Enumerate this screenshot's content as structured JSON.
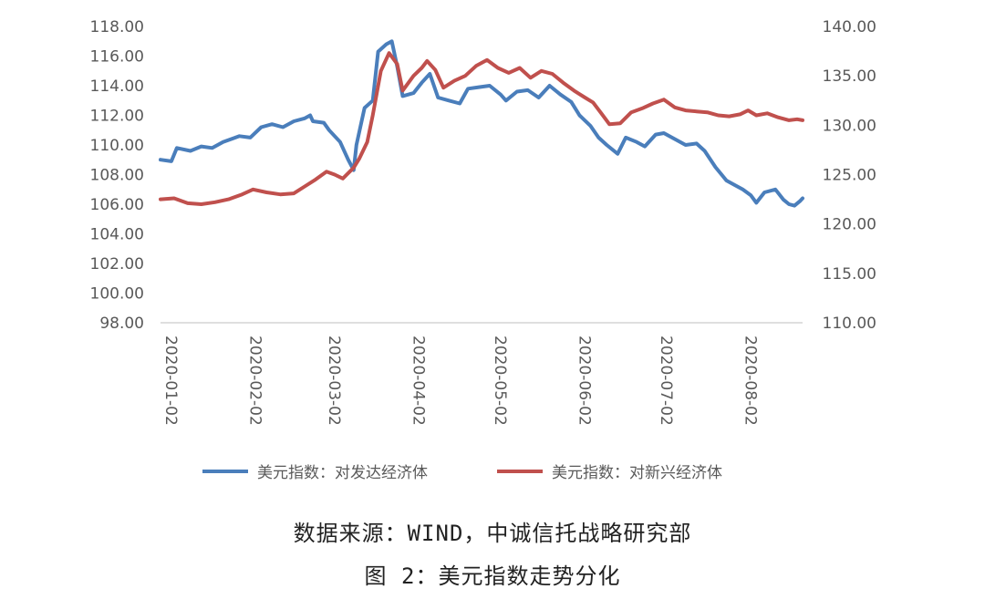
{
  "chart_data": {
    "type": "line",
    "y_left": {
      "ticks": [
        "118.00",
        "116.00",
        "114.00",
        "112.00",
        "110.00",
        "108.00",
        "106.00",
        "104.00",
        "102.00",
        "100.00",
        "98.00"
      ],
      "ylim": [
        98,
        118
      ]
    },
    "y_right": {
      "ticks": [
        "140.00",
        "135.00",
        "130.00",
        "125.00",
        "120.00",
        "115.00",
        "110.00"
      ],
      "ylim": [
        110,
        140
      ]
    },
    "x_ticks": [
      "2020-01-02",
      "2020-02-02",
      "2020-03-02",
      "2020-04-02",
      "2020-05-02",
      "2020-06-02",
      "2020-07-02",
      "2020-08-02"
    ],
    "xlim": [
      "2020-01-02",
      "2020-08-25"
    ],
    "series": [
      {
        "name": "美元指数：对发达经济体",
        "axis": "left",
        "color": "#4a7ebb",
        "points": [
          [
            "2020-01-02",
            109.0
          ],
          [
            "2020-01-06",
            108.9
          ],
          [
            "2020-01-08",
            109.8
          ],
          [
            "2020-01-13",
            109.6
          ],
          [
            "2020-01-17",
            109.9
          ],
          [
            "2020-01-21",
            109.8
          ],
          [
            "2020-01-25",
            110.2
          ],
          [
            "2020-01-31",
            110.6
          ],
          [
            "2020-02-04",
            110.5
          ],
          [
            "2020-02-08",
            111.2
          ],
          [
            "2020-02-12",
            111.4
          ],
          [
            "2020-02-16",
            111.2
          ],
          [
            "2020-02-20",
            111.6
          ],
          [
            "2020-02-24",
            111.8
          ],
          [
            "2020-02-26",
            112.0
          ],
          [
            "2020-02-27",
            111.6
          ],
          [
            "2020-03-02",
            111.5
          ],
          [
            "2020-03-04",
            111.0
          ],
          [
            "2020-03-08",
            110.2
          ],
          [
            "2020-03-11",
            109.0
          ],
          [
            "2020-03-13",
            108.3
          ],
          [
            "2020-03-14",
            110.0
          ],
          [
            "2020-03-17",
            112.5
          ],
          [
            "2020-03-20",
            113.0
          ],
          [
            "2020-03-22",
            116.3
          ],
          [
            "2020-03-25",
            116.8
          ],
          [
            "2020-03-27",
            117.0
          ],
          [
            "2020-03-29",
            115.3
          ],
          [
            "2020-03-31",
            113.3
          ],
          [
            "2020-04-04",
            113.5
          ],
          [
            "2020-04-07",
            114.2
          ],
          [
            "2020-04-10",
            114.8
          ],
          [
            "2020-04-13",
            113.2
          ],
          [
            "2020-04-17",
            113.0
          ],
          [
            "2020-04-21",
            112.8
          ],
          [
            "2020-04-24",
            113.8
          ],
          [
            "2020-04-28",
            113.9
          ],
          [
            "2020-05-02",
            114.0
          ],
          [
            "2020-05-06",
            113.4
          ],
          [
            "2020-05-08",
            113.0
          ],
          [
            "2020-05-12",
            113.6
          ],
          [
            "2020-05-16",
            113.7
          ],
          [
            "2020-05-20",
            113.2
          ],
          [
            "2020-05-24",
            114.0
          ],
          [
            "2020-05-28",
            113.4
          ],
          [
            "2020-06-01",
            112.9
          ],
          [
            "2020-06-04",
            112.0
          ],
          [
            "2020-06-08",
            111.3
          ],
          [
            "2020-06-11",
            110.5
          ],
          [
            "2020-06-14",
            110.0
          ],
          [
            "2020-06-18",
            109.4
          ],
          [
            "2020-06-21",
            110.5
          ],
          [
            "2020-06-25",
            110.2
          ],
          [
            "2020-06-28",
            109.9
          ],
          [
            "2020-07-02",
            110.7
          ],
          [
            "2020-07-05",
            110.8
          ],
          [
            "2020-07-09",
            110.4
          ],
          [
            "2020-07-13",
            110.0
          ],
          [
            "2020-07-17",
            110.1
          ],
          [
            "2020-07-20",
            109.6
          ],
          [
            "2020-07-24",
            108.5
          ],
          [
            "2020-07-28",
            107.6
          ],
          [
            "2020-07-31",
            107.3
          ],
          [
            "2020-08-03",
            107.0
          ],
          [
            "2020-08-06",
            106.6
          ],
          [
            "2020-08-08",
            106.1
          ],
          [
            "2020-08-11",
            106.8
          ],
          [
            "2020-08-15",
            107.0
          ],
          [
            "2020-08-18",
            106.3
          ],
          [
            "2020-08-20",
            106.0
          ],
          [
            "2020-08-22",
            105.9
          ],
          [
            "2020-08-24",
            106.2
          ],
          [
            "2020-08-25",
            106.4
          ]
        ]
      },
      {
        "name": "美元指数：对新兴经济体",
        "axis": "right",
        "color": "#c0504d",
        "points": [
          [
            "2020-01-02",
            122.5
          ],
          [
            "2020-01-07",
            122.6
          ],
          [
            "2020-01-12",
            122.1
          ],
          [
            "2020-01-17",
            122.0
          ],
          [
            "2020-01-22",
            122.2
          ],
          [
            "2020-01-27",
            122.5
          ],
          [
            "2020-02-01",
            123.0
          ],
          [
            "2020-02-05",
            123.5
          ],
          [
            "2020-02-10",
            123.2
          ],
          [
            "2020-02-15",
            123.0
          ],
          [
            "2020-02-20",
            123.1
          ],
          [
            "2020-02-24",
            123.8
          ],
          [
            "2020-02-28",
            124.5
          ],
          [
            "2020-03-03",
            125.3
          ],
          [
            "2020-03-06",
            125.0
          ],
          [
            "2020-03-09",
            124.6
          ],
          [
            "2020-03-13",
            125.7
          ],
          [
            "2020-03-15",
            126.6
          ],
          [
            "2020-03-18",
            128.3
          ],
          [
            "2020-03-20",
            131.0
          ],
          [
            "2020-03-23",
            135.5
          ],
          [
            "2020-03-26",
            137.3
          ],
          [
            "2020-03-29",
            136.2
          ],
          [
            "2020-03-31",
            133.5
          ],
          [
            "2020-04-04",
            135.0
          ],
          [
            "2020-04-07",
            135.8
          ],
          [
            "2020-04-09",
            136.5
          ],
          [
            "2020-04-12",
            135.6
          ],
          [
            "2020-04-15",
            133.8
          ],
          [
            "2020-04-19",
            134.5
          ],
          [
            "2020-04-23",
            135.0
          ],
          [
            "2020-04-27",
            136.0
          ],
          [
            "2020-05-01",
            136.6
          ],
          [
            "2020-05-05",
            135.8
          ],
          [
            "2020-05-09",
            135.3
          ],
          [
            "2020-05-13",
            135.8
          ],
          [
            "2020-05-17",
            134.8
          ],
          [
            "2020-05-21",
            135.5
          ],
          [
            "2020-05-25",
            135.2
          ],
          [
            "2020-05-29",
            134.3
          ],
          [
            "2020-06-02",
            133.5
          ],
          [
            "2020-06-06",
            132.8
          ],
          [
            "2020-06-09",
            132.3
          ],
          [
            "2020-06-12",
            131.2
          ],
          [
            "2020-06-15",
            130.1
          ],
          [
            "2020-06-19",
            130.2
          ],
          [
            "2020-06-23",
            131.3
          ],
          [
            "2020-06-27",
            131.7
          ],
          [
            "2020-07-01",
            132.2
          ],
          [
            "2020-07-05",
            132.6
          ],
          [
            "2020-07-09",
            131.8
          ],
          [
            "2020-07-13",
            131.5
          ],
          [
            "2020-07-17",
            131.4
          ],
          [
            "2020-07-21",
            131.3
          ],
          [
            "2020-07-25",
            131.0
          ],
          [
            "2020-07-29",
            130.9
          ],
          [
            "2020-08-02",
            131.1
          ],
          [
            "2020-08-05",
            131.5
          ],
          [
            "2020-08-08",
            131.0
          ],
          [
            "2020-08-12",
            131.2
          ],
          [
            "2020-08-16",
            130.8
          ],
          [
            "2020-08-20",
            130.5
          ],
          [
            "2020-08-23",
            130.6
          ],
          [
            "2020-08-25",
            130.5
          ]
        ]
      }
    ],
    "legend_position": "bottom",
    "grid": false
  },
  "source_note": "数据来源：WIND，中诚信托战略研究部",
  "figure_title": "图 2：美元指数走势分化"
}
